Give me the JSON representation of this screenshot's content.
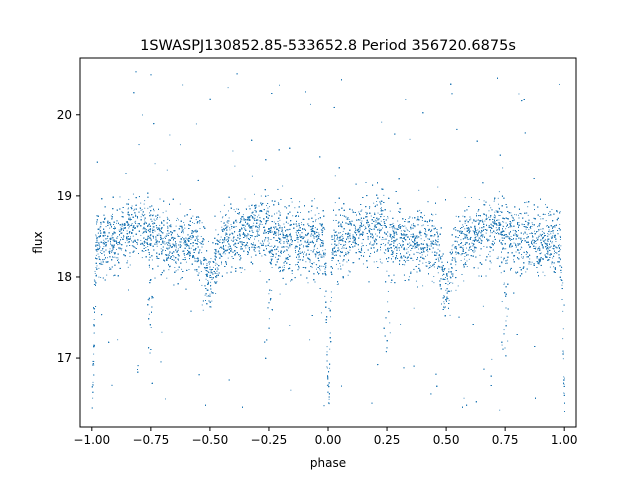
{
  "chart_data": {
    "type": "scatter",
    "title": "1SWASPJ130852.85-533652.8 Period 356720.6875s",
    "xlabel": "phase",
    "ylabel": "flux",
    "xlim": [
      -1.05,
      1.05
    ],
    "ylim": [
      16.15,
      20.7
    ],
    "xticks": [
      -1.0,
      -0.75,
      -0.5,
      -0.25,
      0.0,
      0.25,
      0.5,
      0.75,
      1.0
    ],
    "xtick_labels": [
      "−1.00",
      "−0.75",
      "−0.50",
      "−0.25",
      "0.00",
      "0.25",
      "0.50",
      "0.75",
      "1.00"
    ],
    "yticks": [
      17,
      18,
      19,
      20
    ],
    "ytick_labels": [
      "17",
      "18",
      "19",
      "20"
    ],
    "grid": false,
    "marker_color": "#1f77b4",
    "light_curve": {
      "baseline_flux": 18.42,
      "scatter_sd": 0.2,
      "primary_eclipse_phases": [
        -1.0,
        0.0,
        1.0
      ],
      "primary_eclipse_min_flux": 16.5,
      "secondary_eclipse_phases": [
        -0.5,
        0.5
      ],
      "secondary_eclipse_min_flux": 17.85,
      "minor_dips_phases": [
        -0.75,
        -0.25,
        0.25,
        0.75
      ],
      "minor_dip_min_flux": 17.0,
      "brightening_peaks": [
        {
          "phase": -0.8,
          "flux": 18.95
        },
        {
          "phase": -0.3,
          "flux": 18.95
        },
        {
          "phase": 0.2,
          "flux": 18.95
        },
        {
          "phase": 0.7,
          "flux": 18.95
        }
      ],
      "outlier_range": [
        16.35,
        20.55
      ]
    }
  }
}
